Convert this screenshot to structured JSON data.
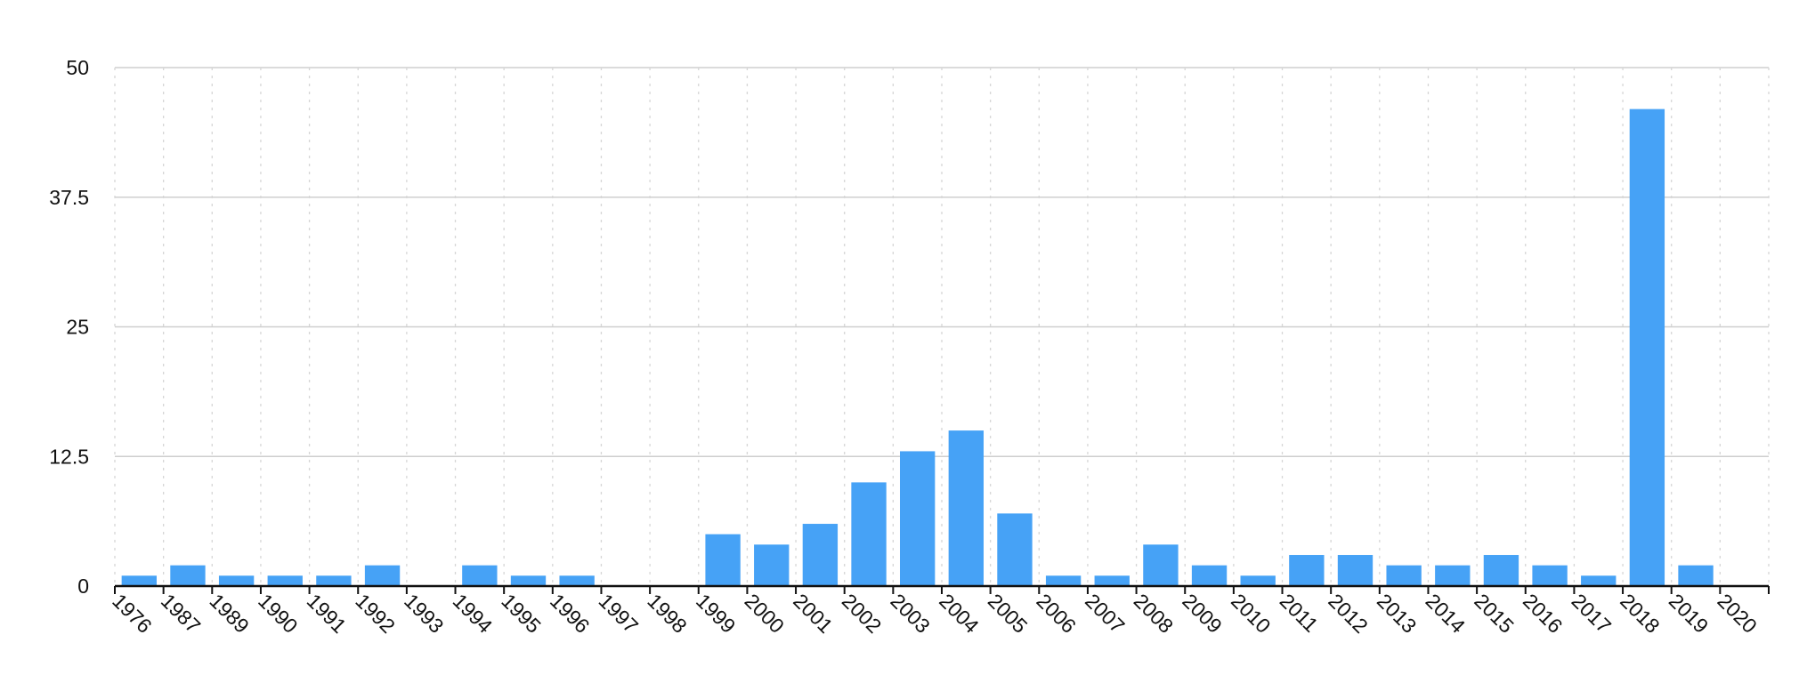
{
  "chart_data": {
    "type": "bar",
    "title": "",
    "xlabel": "",
    "ylabel": "",
    "ylim": [
      0,
      50
    ],
    "yticks": [
      "0",
      "12.5",
      "25",
      "37.5",
      "50"
    ],
    "grid": {
      "horizontal": true,
      "vertical": "dotted"
    },
    "legend": "none",
    "bar_color": "#46a2f6",
    "categories": [
      "1976",
      "1987",
      "1989",
      "1990",
      "1991",
      "1992",
      "1993",
      "1994",
      "1995",
      "1996",
      "1997",
      "1998",
      "1999",
      "2000",
      "2001",
      "2002",
      "2003",
      "2004",
      "2005",
      "2006",
      "2007",
      "2008",
      "2009",
      "2010",
      "2011",
      "2012",
      "2013",
      "2014",
      "2015",
      "2016",
      "2017",
      "2018",
      "2019",
      "2020"
    ],
    "values": [
      1,
      2,
      1,
      1,
      1,
      2,
      0,
      2,
      1,
      1,
      0,
      0,
      5,
      4,
      6,
      10,
      13,
      15,
      7,
      1,
      1,
      4,
      2,
      1,
      3,
      3,
      2,
      2,
      3,
      2,
      1,
      46,
      2,
      0
    ]
  }
}
